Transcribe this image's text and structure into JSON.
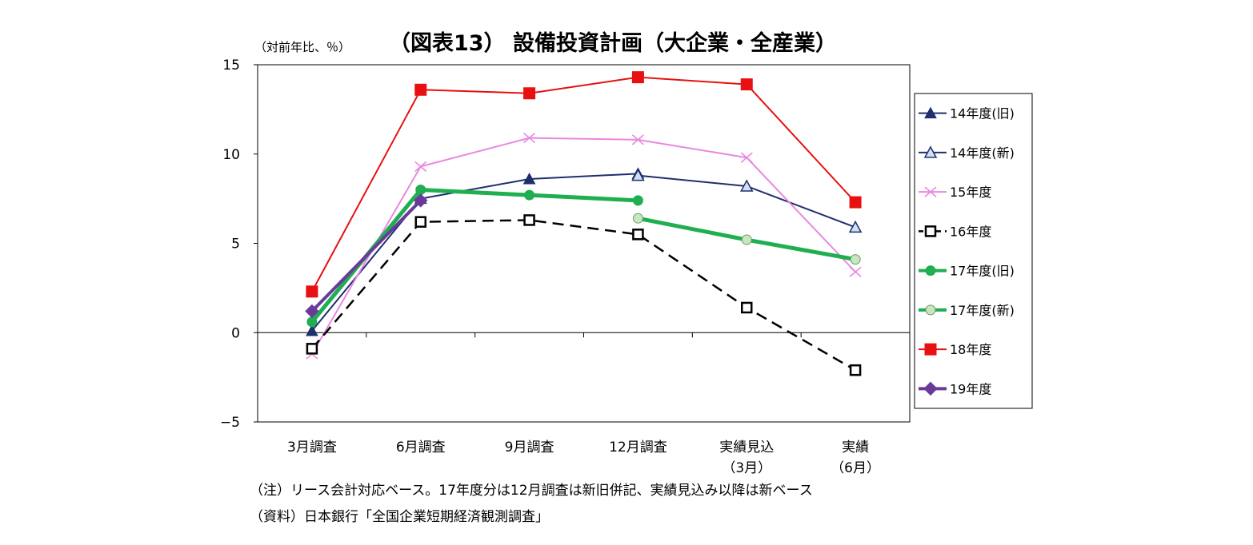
{
  "chart_data": {
    "type": "line",
    "title": "（図表13） 設備投資計画（大企業・全産業）",
    "ylabel": "（対前年比、％）",
    "xlabel": "",
    "ylim": [
      -5,
      15
    ],
    "yticks": [
      15,
      10,
      5,
      0,
      -5
    ],
    "ytick_labels": [
      "15",
      "10",
      "5",
      "0",
      "−5"
    ],
    "categories": [
      "3月調査",
      "6月調査",
      "9月調査",
      "12月調査",
      "実績見込",
      "実績"
    ],
    "category_sublabels": [
      "",
      "",
      "",
      "",
      "（3月）",
      "（6月）"
    ],
    "grid": false,
    "legend_position": "right",
    "series": [
      {
        "name": "14年度(旧)",
        "color": "#1f2f6e",
        "marker": "triangle",
        "dash": false,
        "width": 2,
        "values": [
          0.1,
          7.5,
          8.6,
          8.9,
          null,
          null
        ]
      },
      {
        "name": "14年度(新)",
        "color": "#1f2f6e",
        "marker": "triangle-open",
        "dash": false,
        "width": 2,
        "values": [
          null,
          null,
          null,
          8.8,
          8.2,
          5.9
        ]
      },
      {
        "name": "15年度",
        "color": "#e888e0",
        "marker": "x",
        "dash": false,
        "width": 2,
        "values": [
          -1.2,
          9.3,
          10.9,
          10.8,
          9.8,
          3.4
        ]
      },
      {
        "name": "16年度",
        "color": "#000000",
        "marker": "square-open",
        "dash": true,
        "width": 2.5,
        "values": [
          -0.9,
          6.2,
          6.3,
          5.5,
          1.4,
          -2.1
        ]
      },
      {
        "name": "17年度(旧)",
        "color": "#1fae50",
        "marker": "circle",
        "dash": false,
        "width": 5,
        "values": [
          0.6,
          8.0,
          7.7,
          7.4,
          null,
          null
        ]
      },
      {
        "name": "17年度(新)",
        "color": "#1fae50",
        "marker": "circle-light",
        "dash": false,
        "width": 5,
        "values": [
          null,
          null,
          null,
          6.4,
          5.2,
          4.1
        ]
      },
      {
        "name": "18年度",
        "color": "#e81010",
        "marker": "square",
        "dash": false,
        "width": 2,
        "values": [
          2.3,
          13.6,
          13.4,
          14.3,
          13.9,
          7.3
        ]
      },
      {
        "name": "19年度",
        "color": "#6a3a9a",
        "marker": "diamond",
        "dash": false,
        "width": 4,
        "values": [
          1.2,
          7.4,
          null,
          null,
          null,
          null
        ]
      }
    ]
  },
  "notes": {
    "note1": "（注）リース会計対応ベース。17年度分は12月調査は新旧併記、実績見込み以降は新ベース",
    "source": "（資料）日本銀行「全国企業短期経済観測調査」"
  }
}
